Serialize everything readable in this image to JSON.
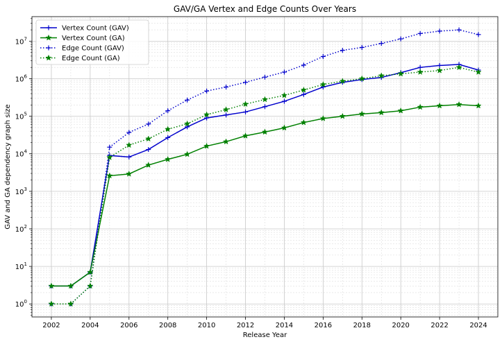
{
  "chart_data": {
    "type": "line",
    "title": "GAV/GA Vertex and Edge Counts Over Years",
    "xlabel": "Release Year",
    "ylabel": "GAV and GA dependency graph size",
    "yscale": "log",
    "xlim": [
      2001.0,
      2025.0
    ],
    "ylim": [
      0.45,
      45000000
    ],
    "xticks": [
      2002,
      2004,
      2006,
      2008,
      2010,
      2012,
      2014,
      2016,
      2018,
      2020,
      2022,
      2024
    ],
    "yticks": [
      1,
      10,
      100,
      1000,
      10000,
      100000,
      1000000,
      10000000
    ],
    "ytick_labels": [
      [
        "10",
        "0"
      ],
      [
        "10",
        "1"
      ],
      [
        "10",
        "2"
      ],
      [
        "10",
        "3"
      ],
      [
        "10",
        "4"
      ],
      [
        "10",
        "5"
      ],
      [
        "10",
        "6"
      ],
      [
        "10",
        "7"
      ]
    ],
    "grid": true,
    "legend_position": "top-left",
    "x": [
      2002,
      2003,
      2004,
      2005,
      2006,
      2007,
      2008,
      2009,
      2010,
      2011,
      2012,
      2013,
      2014,
      2015,
      2016,
      2017,
      2018,
      2019,
      2020,
      2021,
      2022,
      2023,
      2024
    ],
    "series": [
      {
        "name": "Vertex Count (GAV)",
        "color": "#0000cc",
        "line_style": "solid",
        "marker": "plus",
        "values": [
          3,
          3,
          7,
          9000,
          8200,
          13000,
          27000,
          52000,
          90000,
          108000,
          130000,
          180000,
          250000,
          380000,
          600000,
          800000,
          950000,
          1080000,
          1450000,
          2000000,
          2250000,
          2400000,
          1700000
        ]
      },
      {
        "name": "Vertex Count (GA)",
        "color": "#008000",
        "line_style": "solid",
        "marker": "star",
        "values": [
          3,
          3,
          7,
          2600,
          2900,
          5000,
          7100,
          9700,
          16000,
          21000,
          30000,
          38000,
          49000,
          68000,
          87000,
          100000,
          115000,
          125000,
          140000,
          175000,
          190000,
          205000,
          190000
        ]
      },
      {
        "name": "Edge Count (GAV)",
        "color": "#0000cc",
        "line_style": "dotted",
        "marker": "plus",
        "values": [
          1,
          1,
          3,
          15000,
          37000,
          62000,
          140000,
          270000,
          470000,
          600000,
          800000,
          1100000,
          1500000,
          2300000,
          3900000,
          5700000,
          6800000,
          8700000,
          11500000,
          16000000,
          18500000,
          20000000,
          15000000
        ]
      },
      {
        "name": "Edge Count (GA)",
        "color": "#008000",
        "line_style": "dotted",
        "marker": "star",
        "values": [
          1,
          1,
          3,
          8000,
          17000,
          25000,
          45000,
          63000,
          110000,
          150000,
          210000,
          280000,
          360000,
          500000,
          700000,
          860000,
          1000000,
          1200000,
          1350000,
          1500000,
          1650000,
          2000000,
          1500000
        ]
      }
    ]
  }
}
